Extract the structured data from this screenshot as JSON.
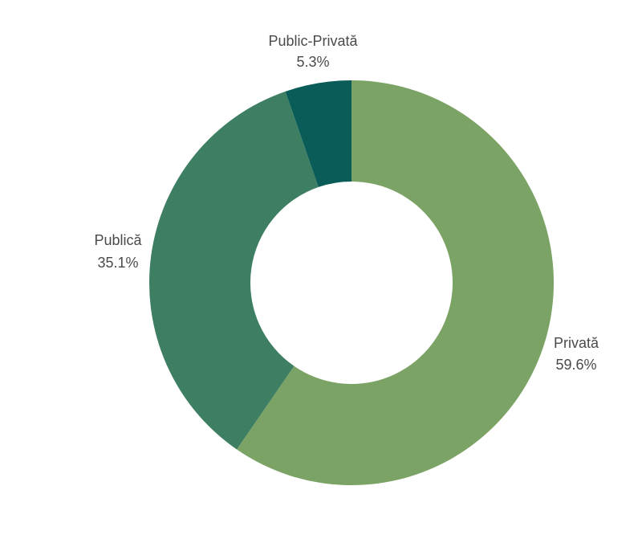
{
  "chart_data": {
    "type": "pie",
    "donut": true,
    "title": "",
    "slices": [
      {
        "label": "Privată",
        "value": 59.6,
        "value_label": "59.6%",
        "color": "#7ba365"
      },
      {
        "label": "Publică",
        "value": 35.1,
        "value_label": "35.1%",
        "color": "#3e7f63"
      },
      {
        "label": "Public-Privată",
        "value": 5.3,
        "value_label": "5.3%",
        "color": "#0a5c59"
      }
    ]
  }
}
